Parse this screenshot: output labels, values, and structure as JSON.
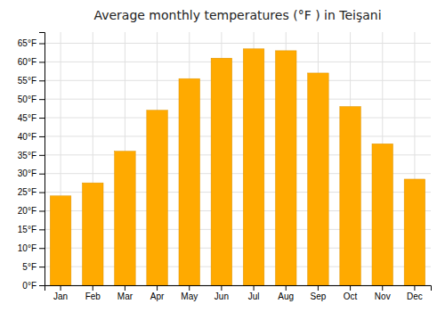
{
  "chart_data": {
    "type": "bar",
    "title": "Average monthly temperatures (°F ) in Teişani",
    "categories": [
      "Jan",
      "Feb",
      "Mar",
      "Apr",
      "May",
      "Jun",
      "Jul",
      "Aug",
      "Sep",
      "Oct",
      "Nov",
      "Dec"
    ],
    "values": [
      24.0,
      27.5,
      36.0,
      47.0,
      55.5,
      61.0,
      63.5,
      63.0,
      57.0,
      48.0,
      38.0,
      28.5
    ],
    "color": "#FFAA00",
    "ylim": [
      0,
      68
    ],
    "yticks": [
      {
        "value": 0,
        "label": "0°F"
      },
      {
        "value": 5,
        "label": "5°F"
      },
      {
        "value": 10,
        "label": "10°F"
      },
      {
        "value": 15,
        "label": "15°F"
      },
      {
        "value": 20,
        "label": "20°F"
      },
      {
        "value": 25,
        "label": "25°F"
      },
      {
        "value": 30,
        "label": "30°F"
      },
      {
        "value": 35,
        "label": "35°F"
      },
      {
        "value": 40,
        "label": "40°F"
      },
      {
        "value": 45,
        "label": "45°F"
      },
      {
        "value": 50,
        "label": "50°F"
      },
      {
        "value": 55,
        "label": "55°F"
      },
      {
        "value": 60,
        "label": "60°F"
      },
      {
        "value": 65,
        "label": "65°F"
      }
    ],
    "grid": true
  }
}
